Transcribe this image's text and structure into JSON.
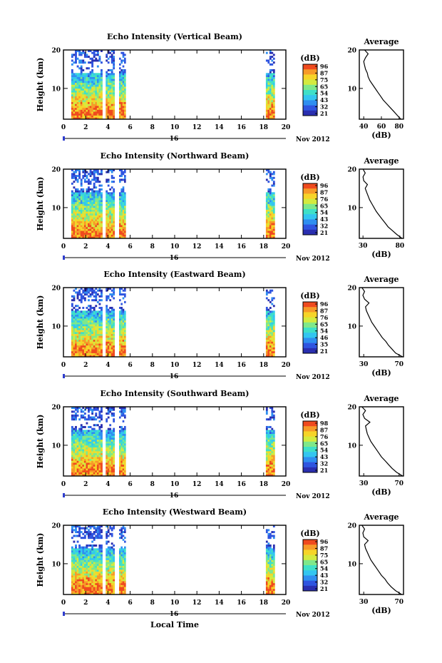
{
  "figure": {
    "bottom_xlabel": "Local Time",
    "date_label": "Nov 2012",
    "day_label": "16",
    "avg_xlabel": "(dB)",
    "avg_title": "Average",
    "colorbar_label": "(dB)",
    "ylabel": "Height (km)"
  },
  "colormap": [
    "#2a2fb0",
    "#2f55e0",
    "#2f8ff0",
    "#33c6f0",
    "#3fe0c8",
    "#7fe88a",
    "#d4ea3f",
    "#f6d428",
    "#f79a28",
    "#ef4a1e"
  ],
  "chart_data": [
    {
      "type": "heatmap",
      "title": "Echo Intensity (Vertical Beam)",
      "x_ticks": [
        "0",
        "2",
        "4",
        "6",
        "8",
        "10",
        "12",
        "14",
        "16",
        "18",
        "20"
      ],
      "xlim": [
        0,
        20
      ],
      "y_ticks": [
        "10",
        "20"
      ],
      "ylim": [
        2,
        20
      ],
      "colorbar_ticks": [
        "96",
        "87",
        "75",
        "65",
        "54",
        "43",
        "32",
        "21"
      ],
      "data_segments_hours": [
        [
          0.7,
          3.5
        ],
        [
          3.8,
          4.6
        ],
        [
          5.0,
          5.6
        ],
        [
          18.2,
          19.0
        ]
      ],
      "avg_xticks": [
        "40",
        "60",
        "80"
      ],
      "avg_xlim": [
        35,
        85
      ],
      "avg_yticks": [
        "10",
        "20"
      ],
      "avg_profile": {
        "height_km": [
          2,
          3,
          4,
          5,
          6,
          7,
          8,
          9,
          10,
          11,
          12,
          13,
          14,
          15,
          16,
          17,
          18,
          19,
          20
        ],
        "db": [
          82,
          78,
          74,
          70,
          66,
          62,
          59,
          56,
          53,
          50,
          47,
          45,
          44,
          42,
          41,
          40,
          42,
          45,
          41
        ]
      }
    },
    {
      "type": "heatmap",
      "title": "Echo Intensity (Northward Beam)",
      "x_ticks": [
        "0",
        "2",
        "4",
        "6",
        "8",
        "10",
        "12",
        "14",
        "16",
        "18",
        "20"
      ],
      "xlim": [
        0,
        20
      ],
      "y_ticks": [
        "10",
        "20"
      ],
      "ylim": [
        2,
        20
      ],
      "colorbar_ticks": [
        "96",
        "87",
        "76",
        "65",
        "54",
        "43",
        "32",
        "21"
      ],
      "data_segments_hours": [
        [
          0.7,
          3.5
        ],
        [
          3.8,
          4.6
        ],
        [
          5.0,
          5.6
        ],
        [
          18.2,
          19.0
        ]
      ],
      "avg_xticks": [
        "30",
        "80"
      ],
      "avg_xlim": [
        25,
        85
      ],
      "avg_yticks": [
        "10",
        "20"
      ],
      "avg_profile": {
        "height_km": [
          2,
          3,
          4,
          5,
          6,
          7,
          8,
          9,
          10,
          11,
          12,
          13,
          14,
          15,
          16,
          17,
          18,
          19,
          20
        ],
        "db": [
          83,
          76,
          70,
          64,
          60,
          56,
          52,
          48,
          45,
          42,
          39,
          37,
          35,
          33,
          36,
          31,
          30,
          33,
          30
        ]
      }
    },
    {
      "type": "heatmap",
      "title": "Echo Intensity (Eastward Beam)",
      "x_ticks": [
        "0",
        "2",
        "4",
        "6",
        "8",
        "10",
        "12",
        "14",
        "16",
        "18",
        "20"
      ],
      "xlim": [
        0,
        20
      ],
      "y_ticks": [
        "10",
        "20"
      ],
      "ylim": [
        2,
        20
      ],
      "colorbar_ticks": [
        "96",
        "87",
        "76",
        "65",
        "54",
        "46",
        "35",
        "21"
      ],
      "data_segments_hours": [
        [
          0.7,
          3.5
        ],
        [
          3.8,
          4.6
        ],
        [
          5.0,
          5.6
        ],
        [
          18.2,
          19.0
        ]
      ],
      "avg_xticks": [
        "30",
        "70"
      ],
      "avg_xlim": [
        25,
        75
      ],
      "avg_yticks": [
        "10",
        "20"
      ],
      "avg_profile": {
        "height_km": [
          2,
          3,
          4,
          5,
          6,
          7,
          8,
          9,
          10,
          11,
          12,
          13,
          14,
          15,
          16,
          17,
          18,
          19,
          20
        ],
        "db": [
          74,
          66,
          62,
          58,
          55,
          51,
          48,
          45,
          42,
          39,
          37,
          35,
          33,
          32,
          36,
          31,
          29,
          31,
          28
        ]
      }
    },
    {
      "type": "heatmap",
      "title": "Echo Intensity (Southward Beam)",
      "x_ticks": [
        "0",
        "2",
        "4",
        "6",
        "8",
        "10",
        "12",
        "14",
        "16",
        "18",
        "20"
      ],
      "xlim": [
        0,
        20
      ],
      "y_ticks": [
        "10",
        "20"
      ],
      "ylim": [
        2,
        20
      ],
      "colorbar_ticks": [
        "98",
        "87",
        "76",
        "65",
        "54",
        "43",
        "32",
        "21"
      ],
      "data_segments_hours": [
        [
          0.7,
          3.5
        ],
        [
          3.8,
          4.6
        ],
        [
          5.0,
          5.6
        ],
        [
          18.2,
          19.0
        ]
      ],
      "avg_xticks": [
        "30",
        "70"
      ],
      "avg_xlim": [
        25,
        75
      ],
      "avg_yticks": [
        "10",
        "20"
      ],
      "avg_profile": {
        "height_km": [
          2,
          3,
          4,
          5,
          6,
          7,
          8,
          9,
          10,
          11,
          12,
          13,
          14,
          15,
          16,
          17,
          18,
          19,
          20
        ],
        "db": [
          74,
          67,
          62,
          58,
          54,
          50,
          47,
          44,
          41,
          38,
          36,
          34,
          33,
          32,
          37,
          31,
          29,
          32,
          28
        ]
      }
    },
    {
      "type": "heatmap",
      "title": "Echo Intensity (Westward Beam)",
      "x_ticks": [
        "0",
        "2",
        "4",
        "6",
        "8",
        "10",
        "12",
        "14",
        "16",
        "18",
        "20"
      ],
      "xlim": [
        0,
        20
      ],
      "y_ticks": [
        "10",
        "20"
      ],
      "ylim": [
        2,
        20
      ],
      "colorbar_ticks": [
        "96",
        "87",
        "75",
        "65",
        "54",
        "43",
        "32",
        "21"
      ],
      "data_segments_hours": [
        [
          0.7,
          3.5
        ],
        [
          3.8,
          4.6
        ],
        [
          5.0,
          5.6
        ],
        [
          18.2,
          19.0
        ]
      ],
      "avg_xticks": [
        "30",
        "70"
      ],
      "avg_xlim": [
        25,
        75
      ],
      "avg_yticks": [
        "10",
        "20"
      ],
      "avg_profile": {
        "height_km": [
          2,
          3,
          4,
          5,
          6,
          7,
          8,
          9,
          10,
          11,
          12,
          13,
          14,
          15,
          16,
          17,
          18,
          19,
          20
        ],
        "db": [
          73,
          66,
          61,
          57,
          54,
          50,
          47,
          44,
          41,
          38,
          36,
          34,
          32,
          31,
          35,
          30,
          29,
          31,
          28
        ]
      }
    }
  ]
}
